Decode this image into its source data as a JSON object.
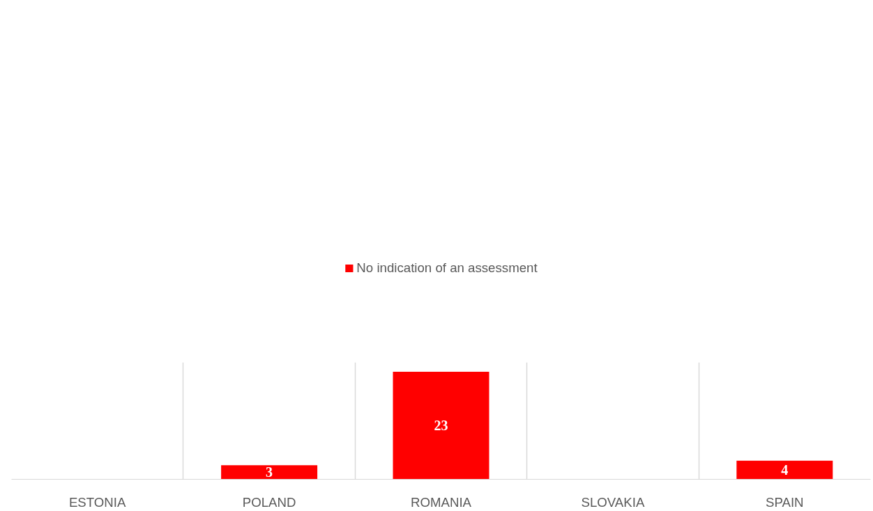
{
  "chart_data": {
    "type": "bar",
    "categories": [
      "ESTONIA",
      "POLAND",
      "ROMANIA",
      "SLOVAKIA",
      "SPAIN"
    ],
    "series": [
      {
        "name": "No indication of an assessment",
        "color": "#ff0000",
        "values": [
          null,
          3,
          23,
          null,
          4
        ]
      }
    ],
    "data_labels": true,
    "grid": "x",
    "legend": "top",
    "tick_labels": "x"
  }
}
